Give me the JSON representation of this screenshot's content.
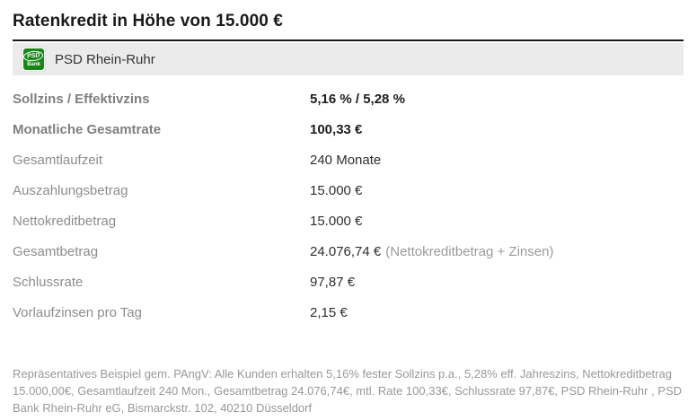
{
  "page": {
    "title": "Ratenkredit in Höhe von 15.000 €"
  },
  "provider": {
    "name": "PSD Rhein-Ruhr",
    "logo": {
      "brand": "PSD",
      "sub": "Bank",
      "green": "#168716"
    }
  },
  "details": {
    "rows": [
      {
        "label": "Sollzins / Effektivzins",
        "value": "5,16 % / 5,28 %",
        "note": "",
        "emphasis": true
      },
      {
        "label": "Monatliche Gesamtrate",
        "value": "100,33 €",
        "note": "",
        "emphasis": true
      },
      {
        "label": "Gesamtlaufzeit",
        "value": "240 Monate",
        "note": "",
        "emphasis": false
      },
      {
        "label": "Auszahlungsbetrag",
        "value": "15.000 €",
        "note": "",
        "emphasis": false
      },
      {
        "label": "Nettokreditbetrag",
        "value": "15.000 €",
        "note": "",
        "emphasis": false
      },
      {
        "label": "Gesamtbetrag",
        "value": "24.076,74 €",
        "note": "(Nettokreditbetrag + Zinsen)",
        "emphasis": false
      },
      {
        "label": "Schlussrate",
        "value": "97,87 €",
        "note": "",
        "emphasis": false
      },
      {
        "label": "Vorlaufzinsen pro Tag",
        "value": "2,15 €",
        "note": "",
        "emphasis": false
      }
    ]
  },
  "disclaimer": "Repräsentatives Beispiel gem. PAngV: Alle Kunden erhalten 5,16% fester Sollzins p.a., 5,28% eff. Jahreszins, Nettokreditbetrag 15.000,00€, Gesamtlaufzeit 240 Mon., Gesamtbetrag 24.076,74€, mtl. Rate 100,33€, Schlussrate 97,87€, PSD Rhein-Ruhr , PSD Bank Rhein-Ruhr eG, Bismarckstr. 102, 40210 Düsseldorf",
  "colors": {
    "accent_green": "#168716",
    "provider_bar_bg": "#ebebeb",
    "title_text": "#1a1a1a",
    "label_gray": "#8d8d8b",
    "value_dark": "#2e2e2c",
    "disclaimer_gray": "#98989b"
  }
}
